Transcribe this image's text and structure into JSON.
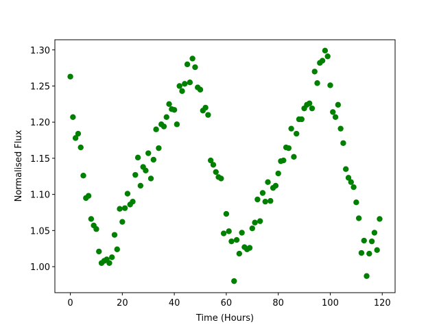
{
  "chart_data": {
    "type": "scatter",
    "x_label": "Time (Hours)",
    "y_label": "Normalised Flux",
    "color": "#008000",
    "x": [
      0,
      1,
      2,
      3,
      4,
      5,
      6,
      7,
      8,
      9,
      10,
      11,
      12,
      13,
      14,
      15,
      16,
      17,
      18,
      19,
      20,
      21,
      22,
      23,
      24,
      25,
      26,
      27,
      28,
      29,
      30,
      31,
      32,
      33,
      34,
      35,
      36,
      37,
      38,
      39,
      40,
      41,
      42,
      43,
      44,
      45,
      46,
      47,
      48,
      49,
      50,
      51,
      52,
      53,
      54,
      55,
      56,
      57,
      58,
      59,
      60,
      61,
      62,
      63,
      64,
      65,
      66,
      67,
      68,
      69,
      70,
      71,
      72,
      73,
      74,
      75,
      76,
      77,
      78,
      79,
      80,
      81,
      82,
      83,
      84,
      85,
      86,
      87,
      88,
      89,
      90,
      91,
      92,
      93,
      94,
      95,
      96,
      97,
      98,
      99,
      100,
      101,
      102,
      103,
      104,
      105,
      106,
      107,
      108,
      109,
      110,
      111,
      112,
      113,
      114,
      115,
      116,
      117,
      118,
      119
    ],
    "values": [
      1.263,
      1.207,
      1.178,
      1.184,
      1.165,
      1.126,
      1.095,
      1.098,
      1.066,
      1.057,
      1.052,
      1.021,
      1.005,
      1.008,
      1.01,
      1.005,
      1.013,
      1.044,
      1.024,
      1.08,
      1.062,
      1.081,
      1.101,
      1.086,
      1.09,
      1.127,
      1.151,
      1.112,
      1.138,
      1.133,
      1.157,
      1.122,
      1.148,
      1.19,
      1.164,
      1.197,
      1.194,
      1.207,
      1.225,
      1.218,
      1.217,
      1.197,
      1.25,
      1.243,
      1.253,
      1.28,
      1.255,
      1.288,
      1.276,
      1.248,
      1.245,
      1.216,
      1.22,
      1.21,
      1.147,
      1.141,
      1.131,
      1.124,
      1.122,
      1.046,
      1.073,
      1.049,
      1.035,
      0.98,
      1.037,
      1.018,
      1.047,
      1.027,
      1.024,
      1.026,
      1.053,
      1.061,
      1.093,
      1.063,
      1.102,
      1.09,
      1.117,
      1.091,
      1.109,
      1.112,
      1.129,
      1.146,
      1.147,
      1.165,
      1.164,
      1.191,
      1.152,
      1.184,
      1.204,
      1.204,
      1.219,
      1.224,
      1.226,
      1.219,
      1.27,
      1.254,
      1.282,
      1.285,
      1.299,
      1.291,
      1.251,
      1.214,
      1.207,
      1.224,
      1.191,
      1.171,
      1.135,
      1.123,
      1.117,
      1.11,
      1.089,
      1.067,
      1.019,
      1.036,
      0.987,
      1.018,
      1.035,
      1.047,
      1.023,
      1.066
    ],
    "xlim": [
      -5.95,
      124.95
    ],
    "ylim": [
      0.964,
      1.314
    ],
    "xticks": [
      0,
      20,
      40,
      60,
      80,
      100,
      120
    ],
    "yticks": [
      {
        "value": 1.0,
        "label": "1.00"
      },
      {
        "value": 1.05,
        "label": "1.05"
      },
      {
        "value": 1.1,
        "label": "1.10"
      },
      {
        "value": 1.15,
        "label": "1.15"
      },
      {
        "value": 1.2,
        "label": "1.20"
      },
      {
        "value": 1.25,
        "label": "1.25"
      },
      {
        "value": 1.3,
        "label": "1.30"
      }
    ]
  }
}
